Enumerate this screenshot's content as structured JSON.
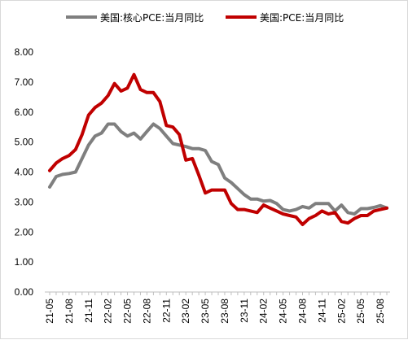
{
  "chart_data": {
    "type": "line",
    "title": "",
    "xlabel": "",
    "ylabel": "",
    "ylim": [
      0,
      8
    ],
    "y_ticks": [
      "0.00",
      "1.00",
      "2.00",
      "3.00",
      "4.00",
      "5.00",
      "6.00",
      "7.00",
      "8.00"
    ],
    "x_tick_labels": [
      "21-05",
      "21-08",
      "21-11",
      "22-02",
      "22-05",
      "22-08",
      "22-11",
      "23-02",
      "23-05",
      "23-08",
      "23-11",
      "24-02",
      "24-05",
      "24-08",
      "24-11",
      "25-02",
      "25-05",
      "25-08"
    ],
    "grid": false,
    "legend_position": "top",
    "x": [
      "21-05",
      "21-06",
      "21-07",
      "21-08",
      "21-09",
      "21-10",
      "21-11",
      "21-12",
      "22-01",
      "22-02",
      "22-03",
      "22-04",
      "22-05",
      "22-06",
      "22-07",
      "22-08",
      "22-09",
      "22-10",
      "22-11",
      "22-12",
      "23-01",
      "23-02",
      "23-03",
      "23-04",
      "23-05",
      "23-06",
      "23-07",
      "23-08",
      "23-09",
      "23-10",
      "23-11",
      "23-12",
      "24-01",
      "24-02",
      "24-03",
      "24-04",
      "24-05",
      "24-06",
      "24-07",
      "24-08",
      "24-09",
      "24-10",
      "24-11",
      "24-12",
      "25-01",
      "25-02",
      "25-03",
      "25-04",
      "25-05",
      "25-06",
      "25-07",
      "25-08",
      "25-09"
    ],
    "series": [
      {
        "name": "美国:核心PCE:当月同比",
        "color": "#7f7f7f",
        "values": [
          3.5,
          3.85,
          3.92,
          3.95,
          4.0,
          4.45,
          4.9,
          5.2,
          5.3,
          5.6,
          5.6,
          5.35,
          5.2,
          5.3,
          5.1,
          5.35,
          5.6,
          5.45,
          5.2,
          4.95,
          4.9,
          4.85,
          4.78,
          4.78,
          4.72,
          4.35,
          4.25,
          3.8,
          3.65,
          3.45,
          3.25,
          3.1,
          3.1,
          3.03,
          3.05,
          2.95,
          2.75,
          2.7,
          2.75,
          2.85,
          2.8,
          2.95,
          2.95,
          2.95,
          2.7,
          2.9,
          2.65,
          2.6,
          2.78,
          2.78,
          2.82,
          2.88,
          2.8
        ]
      },
      {
        "name": "美国:PCE:当月同比",
        "color": "#c00000",
        "values": [
          4.05,
          4.3,
          4.45,
          4.55,
          4.75,
          5.25,
          5.9,
          6.15,
          6.3,
          6.55,
          6.95,
          6.7,
          6.8,
          7.25,
          6.75,
          6.65,
          6.65,
          6.35,
          5.55,
          5.5,
          5.25,
          4.4,
          4.45,
          3.9,
          3.3,
          3.4,
          3.4,
          3.4,
          2.95,
          2.75,
          2.75,
          2.7,
          2.65,
          2.9,
          2.8,
          2.7,
          2.6,
          2.55,
          2.5,
          2.25,
          2.45,
          2.55,
          2.7,
          2.6,
          2.65,
          2.35,
          2.3,
          2.45,
          2.55,
          2.55,
          2.7,
          2.75,
          2.8
        ]
      }
    ]
  }
}
